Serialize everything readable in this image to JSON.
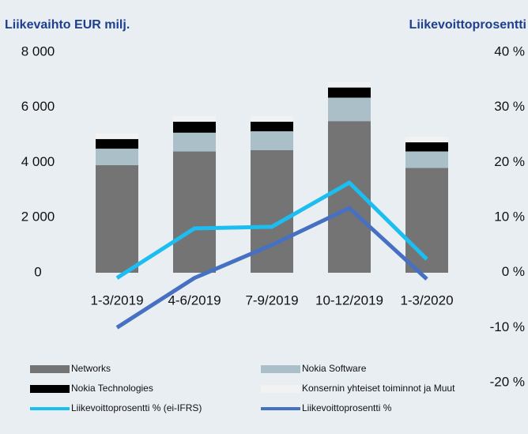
{
  "chart_data": {
    "type": "bar",
    "y_label": "Liikevaihto EUR milj.",
    "y2_label": "Liikevoittoprosentti",
    "categories": [
      "1-3/2019",
      "4-6/2019",
      "7-9/2019",
      "10-12/2019",
      "1-3/2020"
    ],
    "series": [
      {
        "name": "Networks",
        "type": "bar",
        "color": "#747474",
        "values": [
          3900,
          4400,
          4450,
          5500,
          3800
        ]
      },
      {
        "name": "Nokia Software",
        "type": "bar",
        "color": "#abbfc8",
        "values": [
          600,
          680,
          680,
          850,
          600
        ]
      },
      {
        "name": "Nokia Technologies",
        "type": "bar",
        "color": "#000000",
        "values": [
          350,
          400,
          350,
          370,
          330
        ]
      },
      {
        "name": "Konsernin yhteiset toiminnot ja Muut",
        "type": "bar",
        "color": "#f2f2f2",
        "values": [
          200,
          200,
          200,
          200,
          200
        ]
      },
      {
        "name": "Liikevoittoprosentti % (ei-IFRS)",
        "type": "line",
        "axis": "y2",
        "color": "#1cbdf0",
        "values": [
          -1,
          8,
          8.3,
          16.3,
          2.4
        ]
      },
      {
        "name": "Liikevoittoprosentti %",
        "type": "line",
        "axis": "y2",
        "color": "#4670c2",
        "values": [
          -10,
          -1,
          5,
          11.7,
          -1.2
        ]
      }
    ],
    "ylim": [
      0,
      8000
    ],
    "yticks": [
      0,
      {
        "value": 2000,
        "label": "2 000"
      },
      {
        "value": 4000,
        "label": "4 000"
      },
      {
        "value": 6000,
        "label": "6 000"
      },
      {
        "value": 8000,
        "label": "8 000"
      }
    ],
    "y2lim": [
      -20,
      40
    ],
    "y2ticks": [
      {
        "value": -20,
        "label": "-20 %"
      },
      {
        "value": -10,
        "label": "-10 %"
      },
      {
        "value": 0,
        "label": "0 %"
      },
      {
        "value": 10,
        "label": "10 %"
      },
      {
        "value": 20,
        "label": "20 %"
      },
      {
        "value": 30,
        "label": "30 %"
      },
      {
        "value": 40,
        "label": "40 %"
      }
    ],
    "grid": false
  }
}
